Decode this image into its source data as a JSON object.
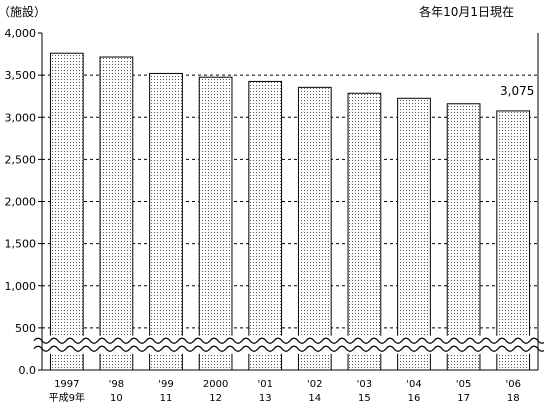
{
  "chart_data": {
    "type": "bar",
    "unit_label": "（施設）",
    "note": "各年10月1日現在",
    "categories": [
      {
        "year": "1997",
        "era": "平成9年"
      },
      {
        "year": "'98",
        "era": "10"
      },
      {
        "year": "'99",
        "era": "11"
      },
      {
        "year": "2000",
        "era": "12"
      },
      {
        "year": "'01",
        "era": "13"
      },
      {
        "year": "'02",
        "era": "14"
      },
      {
        "year": "'03",
        "era": "15"
      },
      {
        "year": "'04",
        "era": "16"
      },
      {
        "year": "'05",
        "era": "17"
      },
      {
        "year": "'06",
        "era": "18"
      }
    ],
    "values": [
      3760,
      3715,
      3520,
      3475,
      3425,
      3355,
      3285,
      3225,
      3160,
      3075
    ],
    "data_labels": [
      null,
      null,
      null,
      null,
      null,
      null,
      null,
      null,
      null,
      "3,075"
    ],
    "yticks": [
      {
        "value": 0,
        "label": "0.0"
      },
      {
        "value": 500,
        "label": "500"
      },
      {
        "value": 1000,
        "label": "1,000"
      },
      {
        "value": 1500,
        "label": "1,500"
      },
      {
        "value": 2000,
        "label": "2,000"
      },
      {
        "value": 2500,
        "label": "2,500"
      },
      {
        "value": 3000,
        "label": "3,000"
      },
      {
        "value": 3500,
        "label": "3,500"
      },
      {
        "value": 4000,
        "label": "4,000"
      }
    ],
    "ylim": [
      0,
      4000
    ],
    "axis_break_value": 300,
    "grid": true,
    "bar_fill": "#ffffff",
    "bar_pattern": "dots",
    "gridline_style": "dashed"
  }
}
